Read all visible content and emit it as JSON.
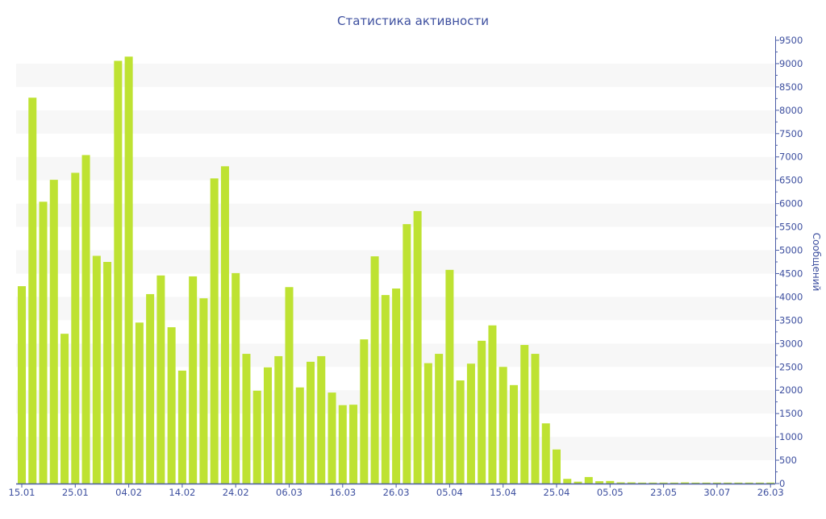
{
  "chart_data": {
    "type": "bar",
    "title": "Статистика активности",
    "xlabel": "",
    "ylabel": "Сообщений",
    "ylim": [
      0,
      9500
    ],
    "ytick_step": 500,
    "y_axis_side": "right",
    "grid": "alternating horizontal bands",
    "bar_color": "#bee232",
    "axis_color": "#4a5ca6",
    "band_color": "#f7f7f7",
    "x_tick_labels": [
      "15.01",
      "25.01",
      "04.02",
      "14.02",
      "24.02",
      "06.03",
      "16.03",
      "26.03",
      "05.04",
      "15.04",
      "25.04",
      "05.05",
      "23.05",
      "30.07",
      "26.03"
    ],
    "x_tick_every": 5,
    "values": [
      4230,
      8270,
      6040,
      6510,
      3210,
      6660,
      7040,
      4880,
      4750,
      9060,
      9150,
      3450,
      4060,
      4460,
      3350,
      2420,
      4440,
      3970,
      6540,
      6800,
      4510,
      2780,
      1990,
      2490,
      2730,
      4210,
      2060,
      2610,
      2730,
      1950,
      1680,
      1690,
      3090,
      4870,
      4040,
      4180,
      5560,
      5840,
      2580,
      2780,
      4580,
      2210,
      2570,
      3060,
      3390,
      2500,
      2110,
      2970,
      2780,
      1290,
      730,
      100,
      40,
      140,
      50,
      55,
      25,
      25,
      20,
      20,
      20,
      20,
      25,
      20,
      20,
      20,
      20,
      20,
      20,
      20,
      20
    ]
  }
}
